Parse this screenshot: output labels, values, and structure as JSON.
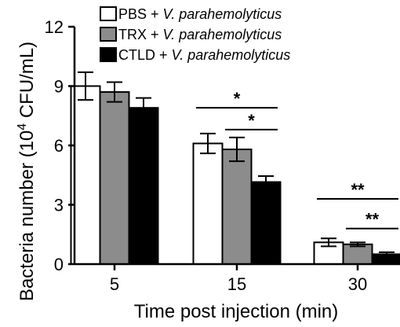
{
  "chart_data": {
    "type": "bar",
    "title": "",
    "xlabel": "Time post injection (min)",
    "ylabel": "Bacteria number (10",
    "ylabel_superscript": "4",
    "ylabel_suffix": " CFU/mL)",
    "categories": [
      "5",
      "15",
      "30"
    ],
    "ylim": [
      0,
      12
    ],
    "yticks": [
      "0",
      "3",
      "6",
      "9",
      "12"
    ],
    "grid": false,
    "legend_position": "top",
    "series": [
      {
        "name_prefix": "PBS + ",
        "name_italic": "V. parahemolyticus",
        "color": "#ffffff",
        "values": [
          9.0,
          6.1,
          1.1
        ],
        "errors": [
          0.7,
          0.5,
          0.2
        ]
      },
      {
        "name_prefix": "TRX + ",
        "name_italic": "V. parahemolyticus",
        "color": "#8c8c8c",
        "values": [
          8.7,
          5.8,
          1.0
        ],
        "errors": [
          0.5,
          0.6,
          0.1
        ]
      },
      {
        "name_prefix": "CTLD + ",
        "name_italic": "V. parahemolyticus",
        "color": "#000000",
        "values": [
          7.9,
          4.15,
          0.5
        ],
        "errors": [
          0.5,
          0.3,
          0.1
        ]
      }
    ],
    "significance": [
      {
        "category": 1,
        "from": 0,
        "to": 2,
        "label": "*",
        "y": 7.9
      },
      {
        "category": 1,
        "from": 1,
        "to": 2,
        "label": "*",
        "y": 6.8
      },
      {
        "category": 2,
        "from": 0,
        "to": 2,
        "label": "**",
        "y": 3.3
      },
      {
        "category": 2,
        "from": 1,
        "to": 2,
        "label": "**",
        "y": 1.8
      }
    ]
  }
}
